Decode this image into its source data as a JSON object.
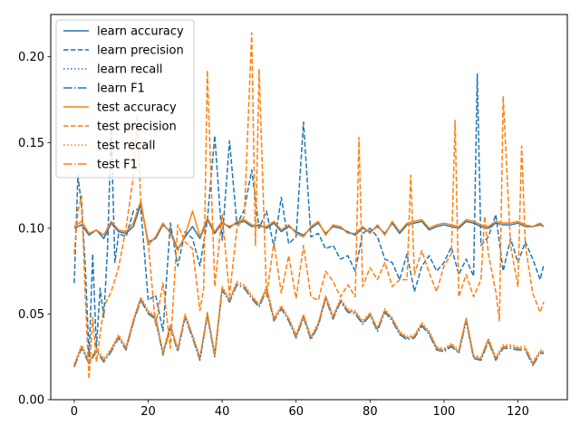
{
  "chart_data": {
    "type": "line",
    "title": "",
    "xlabel": "",
    "ylabel": "",
    "xlim": [
      -6.35,
      133.35
    ],
    "ylim": [
      0.0,
      0.2247
    ],
    "xticks": [
      0,
      20,
      40,
      60,
      80,
      100,
      120
    ],
    "xtick_labels": [
      "0",
      "20",
      "40",
      "60",
      "80",
      "100",
      "120"
    ],
    "yticks": [
      0.0,
      0.05,
      0.1,
      0.15,
      0.2
    ],
    "ytick_labels": [
      "0.00",
      "0.05",
      "0.10",
      "0.15",
      "0.20"
    ],
    "grid": false,
    "legend_position": "upper-left",
    "colors": {
      "learn": "#1f77b4",
      "test": "#ff7f0e"
    },
    "series": [
      {
        "name": "learn accuracy",
        "color": "#1f77b4",
        "style": "solid",
        "x": [
          0,
          2,
          4,
          6,
          8,
          10,
          12,
          14,
          16,
          18,
          20,
          22,
          24,
          26,
          28,
          30,
          32,
          34,
          36,
          38,
          40,
          42,
          44,
          46,
          48,
          50,
          52,
          54,
          56,
          58,
          60,
          62,
          64,
          66,
          68,
          70,
          72,
          74,
          76,
          78,
          80,
          82,
          84,
          86,
          88,
          90,
          92,
          94,
          96,
          98,
          100,
          102,
          104,
          106,
          108,
          110,
          112,
          114,
          116,
          118,
          120,
          122,
          124,
          126,
          127
        ],
        "y": [
          0.1,
          0.102,
          0.096,
          0.099,
          0.094,
          0.103,
          0.098,
          0.097,
          0.101,
          0.114,
          0.092,
          0.094,
          0.102,
          0.098,
          0.088,
          0.095,
          0.101,
          0.094,
          0.105,
          0.097,
          0.103,
          0.101,
          0.103,
          0.104,
          0.101,
          0.102,
          0.1,
          0.103,
          0.098,
          0.101,
          0.098,
          0.096,
          0.1,
          0.103,
          0.097,
          0.101,
          0.1,
          0.098,
          0.096,
          0.1,
          0.098,
          0.101,
          0.097,
          0.103,
          0.097,
          0.102,
          0.103,
          0.104,
          0.099,
          0.101,
          0.102,
          0.101,
          0.1,
          0.104,
          0.103,
          0.101,
          0.1,
          0.103,
          0.102,
          0.102,
          0.103,
          0.101,
          0.101,
          0.102,
          0.101
        ]
      },
      {
        "name": "learn precision",
        "color": "#1f77b4",
        "style": "dashed",
        "x": [
          0,
          1,
          2,
          3,
          4,
          5,
          6,
          7,
          8,
          9,
          10,
          11,
          12,
          14,
          16,
          18,
          20,
          22,
          24,
          26,
          28,
          30,
          32,
          34,
          36,
          38,
          40,
          42,
          44,
          46,
          48,
          50,
          52,
          54,
          56,
          58,
          60,
          62,
          64,
          66,
          68,
          70,
          72,
          74,
          76,
          78,
          80,
          82,
          84,
          86,
          88,
          90,
          92,
          94,
          96,
          98,
          100,
          102,
          104,
          106,
          108,
          109,
          110,
          112,
          114,
          116,
          118,
          120,
          122,
          124,
          126,
          127
        ],
        "y": [
          0.068,
          0.131,
          0.112,
          0.078,
          0.025,
          0.085,
          0.03,
          0.065,
          0.048,
          0.088,
          0.158,
          0.08,
          0.097,
          0.095,
          0.11,
          0.112,
          0.058,
          0.061,
          0.04,
          0.103,
          0.078,
          0.098,
          0.094,
          0.078,
          0.105,
          0.154,
          0.093,
          0.151,
          0.102,
          0.111,
          0.134,
          0.1,
          0.11,
          0.089,
          0.118,
          0.091,
          0.095,
          0.162,
          0.095,
          0.097,
          0.088,
          0.09,
          0.082,
          0.084,
          0.075,
          0.097,
          0.1,
          0.095,
          0.082,
          0.08,
          0.07,
          0.085,
          0.063,
          0.078,
          0.084,
          0.075,
          0.08,
          0.089,
          0.073,
          0.082,
          0.072,
          0.19,
          0.09,
          0.095,
          0.108,
          0.075,
          0.094,
          0.08,
          0.092,
          0.082,
          0.07,
          0.079
        ]
      },
      {
        "name": "learn recall",
        "color": "#1f77b4",
        "style": "dotted",
        "x": [
          0,
          2,
          4,
          6,
          8,
          10,
          12,
          14,
          16,
          18,
          20,
          22,
          24,
          26,
          28,
          30,
          32,
          34,
          36,
          38,
          40,
          42,
          44,
          46,
          48,
          50,
          52,
          54,
          56,
          58,
          60,
          62,
          64,
          66,
          68,
          70,
          72,
          74,
          76,
          78,
          80,
          82,
          84,
          86,
          88,
          90,
          92,
          94,
          96,
          98,
          100,
          102,
          104,
          106,
          108,
          110,
          112,
          114,
          116,
          118,
          120,
          122,
          124,
          126,
          127
        ],
        "y": [
          0.02,
          0.031,
          0.022,
          0.029,
          0.023,
          0.029,
          0.037,
          0.03,
          0.046,
          0.059,
          0.051,
          0.048,
          0.027,
          0.043,
          0.029,
          0.049,
          0.037,
          0.024,
          0.05,
          0.026,
          0.065,
          0.058,
          0.068,
          0.066,
          0.06,
          0.055,
          0.065,
          0.047,
          0.054,
          0.047,
          0.037,
          0.049,
          0.036,
          0.044,
          0.06,
          0.048,
          0.058,
          0.052,
          0.051,
          0.045,
          0.05,
          0.041,
          0.052,
          0.047,
          0.039,
          0.036,
          0.037,
          0.044,
          0.039,
          0.03,
          0.029,
          0.032,
          0.028,
          0.047,
          0.025,
          0.024,
          0.035,
          0.024,
          0.031,
          0.031,
          0.03,
          0.03,
          0.021,
          0.028,
          0.028
        ]
      },
      {
        "name": "learn F1",
        "color": "#1f77b4",
        "style": "dashdot",
        "x": [
          0,
          2,
          4,
          6,
          8,
          10,
          12,
          14,
          16,
          18,
          20,
          22,
          24,
          26,
          28,
          30,
          32,
          34,
          36,
          38,
          40,
          42,
          44,
          46,
          48,
          50,
          52,
          54,
          56,
          58,
          60,
          62,
          64,
          66,
          68,
          70,
          72,
          74,
          76,
          78,
          80,
          82,
          84,
          86,
          88,
          90,
          92,
          94,
          96,
          98,
          100,
          102,
          104,
          106,
          108,
          110,
          112,
          114,
          116,
          118,
          120,
          122,
          124,
          126,
          127
        ],
        "y": [
          0.019,
          0.03,
          0.021,
          0.028,
          0.022,
          0.028,
          0.036,
          0.029,
          0.045,
          0.058,
          0.05,
          0.047,
          0.026,
          0.042,
          0.028,
          0.048,
          0.036,
          0.023,
          0.049,
          0.025,
          0.064,
          0.057,
          0.067,
          0.065,
          0.059,
          0.054,
          0.064,
          0.046,
          0.053,
          0.046,
          0.036,
          0.048,
          0.035,
          0.043,
          0.059,
          0.047,
          0.057,
          0.051,
          0.05,
          0.044,
          0.049,
          0.04,
          0.051,
          0.046,
          0.038,
          0.035,
          0.036,
          0.043,
          0.038,
          0.029,
          0.028,
          0.031,
          0.027,
          0.046,
          0.024,
          0.023,
          0.034,
          0.023,
          0.03,
          0.03,
          0.029,
          0.029,
          0.02,
          0.027,
          0.027
        ]
      },
      {
        "name": "test accuracy",
        "color": "#ff7f0e",
        "style": "solid",
        "x": [
          0,
          2,
          4,
          6,
          8,
          10,
          12,
          14,
          16,
          18,
          20,
          22,
          24,
          26,
          28,
          30,
          32,
          34,
          36,
          38,
          40,
          42,
          44,
          46,
          48,
          50,
          52,
          54,
          56,
          58,
          60,
          62,
          64,
          66,
          68,
          70,
          72,
          74,
          76,
          78,
          80,
          82,
          84,
          86,
          88,
          90,
          92,
          94,
          96,
          98,
          100,
          102,
          104,
          106,
          108,
          110,
          112,
          114,
          116,
          118,
          120,
          122,
          124,
          126,
          127
        ],
        "y": [
          0.101,
          0.104,
          0.097,
          0.099,
          0.096,
          0.104,
          0.099,
          0.098,
          0.103,
          0.116,
          0.09,
          0.095,
          0.103,
          0.097,
          0.087,
          0.096,
          0.11,
          0.095,
          0.106,
          0.098,
          0.104,
          0.1,
          0.104,
          0.105,
          0.102,
          0.101,
          0.101,
          0.104,
          0.099,
          0.102,
          0.097,
          0.095,
          0.101,
          0.104,
          0.096,
          0.102,
          0.101,
          0.097,
          0.097,
          0.101,
          0.097,
          0.102,
          0.096,
          0.104,
          0.098,
          0.103,
          0.104,
          0.105,
          0.1,
          0.102,
          0.103,
          0.102,
          0.101,
          0.105,
          0.104,
          0.102,
          0.101,
          0.104,
          0.103,
          0.103,
          0.104,
          0.102,
          0.101,
          0.103,
          0.101
        ]
      },
      {
        "name": "test precision",
        "color": "#ff7f0e",
        "style": "dashed",
        "x": [
          0,
          1,
          2,
          3,
          4,
          5,
          6,
          8,
          10,
          12,
          14,
          16,
          17,
          18,
          20,
          22,
          24,
          26,
          28,
          30,
          32,
          34,
          35,
          36,
          38,
          40,
          42,
          44,
          46,
          48,
          49,
          50,
          52,
          54,
          56,
          58,
          60,
          62,
          64,
          66,
          68,
          70,
          72,
          74,
          76,
          77,
          78,
          80,
          82,
          84,
          86,
          88,
          90,
          91,
          92,
          94,
          96,
          98,
          100,
          102,
          103,
          104,
          106,
          108,
          110,
          111,
          112,
          114,
          115,
          116,
          118,
          120,
          121,
          122,
          124,
          126,
          127
        ],
        "y": [
          0.085,
          0.11,
          0.119,
          0.06,
          0.012,
          0.048,
          0.022,
          0.054,
          0.063,
          0.077,
          0.1,
          0.13,
          0.165,
          0.115,
          0.092,
          0.043,
          0.068,
          0.03,
          0.102,
          0.092,
          0.088,
          0.052,
          0.065,
          0.192,
          0.066,
          0.108,
          0.061,
          0.1,
          0.107,
          0.214,
          0.09,
          0.193,
          0.06,
          0.092,
          0.062,
          0.084,
          0.059,
          0.09,
          0.06,
          0.058,
          0.075,
          0.069,
          0.06,
          0.067,
          0.06,
          0.153,
          0.066,
          0.077,
          0.07,
          0.08,
          0.066,
          0.07,
          0.07,
          0.131,
          0.073,
          0.087,
          0.074,
          0.063,
          0.078,
          0.085,
          0.163,
          0.06,
          0.073,
          0.06,
          0.07,
          0.107,
          0.085,
          0.063,
          0.046,
          0.177,
          0.09,
          0.066,
          0.148,
          0.09,
          0.062,
          0.051,
          0.057
        ]
      },
      {
        "name": "test recall",
        "color": "#ff7f0e",
        "style": "dotted",
        "x": [
          0,
          2,
          4,
          6,
          8,
          10,
          12,
          14,
          16,
          18,
          20,
          22,
          24,
          26,
          28,
          30,
          32,
          34,
          36,
          38,
          40,
          42,
          44,
          46,
          48,
          50,
          52,
          54,
          56,
          58,
          60,
          62,
          64,
          66,
          68,
          70,
          72,
          74,
          76,
          78,
          80,
          82,
          84,
          86,
          88,
          90,
          92,
          94,
          96,
          98,
          100,
          102,
          104,
          106,
          108,
          110,
          112,
          114,
          116,
          118,
          120,
          122,
          124,
          126,
          127
        ],
        "y": [
          0.021,
          0.032,
          0.023,
          0.03,
          0.024,
          0.03,
          0.038,
          0.031,
          0.047,
          0.06,
          0.052,
          0.049,
          0.028,
          0.044,
          0.03,
          0.05,
          0.038,
          0.025,
          0.051,
          0.027,
          0.066,
          0.059,
          0.069,
          0.067,
          0.061,
          0.056,
          0.066,
          0.048,
          0.055,
          0.048,
          0.038,
          0.05,
          0.037,
          0.045,
          0.061,
          0.049,
          0.059,
          0.053,
          0.052,
          0.046,
          0.051,
          0.042,
          0.053,
          0.048,
          0.04,
          0.037,
          0.038,
          0.045,
          0.04,
          0.031,
          0.03,
          0.033,
          0.029,
          0.048,
          0.026,
          0.025,
          0.036,
          0.025,
          0.032,
          0.032,
          0.031,
          0.031,
          0.022,
          0.029,
          0.029
        ]
      },
      {
        "name": "test F1",
        "color": "#ff7f0e",
        "style": "dashdot",
        "x": [
          0,
          2,
          4,
          6,
          8,
          10,
          12,
          14,
          16,
          18,
          20,
          22,
          24,
          26,
          28,
          30,
          32,
          34,
          36,
          38,
          40,
          42,
          44,
          46,
          48,
          50,
          52,
          54,
          56,
          58,
          60,
          62,
          64,
          66,
          68,
          70,
          72,
          74,
          76,
          78,
          80,
          82,
          84,
          86,
          88,
          90,
          92,
          94,
          96,
          98,
          100,
          102,
          104,
          106,
          108,
          110,
          112,
          114,
          116,
          118,
          120,
          122,
          124,
          126,
          127
        ],
        "y": [
          0.02,
          0.031,
          0.022,
          0.029,
          0.023,
          0.029,
          0.037,
          0.03,
          0.046,
          0.059,
          0.051,
          0.048,
          0.027,
          0.043,
          0.029,
          0.049,
          0.037,
          0.024,
          0.05,
          0.026,
          0.065,
          0.058,
          0.068,
          0.066,
          0.06,
          0.055,
          0.065,
          0.047,
          0.054,
          0.047,
          0.037,
          0.049,
          0.036,
          0.044,
          0.06,
          0.048,
          0.058,
          0.052,
          0.051,
          0.045,
          0.05,
          0.041,
          0.052,
          0.047,
          0.039,
          0.036,
          0.037,
          0.044,
          0.039,
          0.03,
          0.029,
          0.032,
          0.028,
          0.047,
          0.025,
          0.024,
          0.035,
          0.024,
          0.031,
          0.031,
          0.03,
          0.03,
          0.021,
          0.028,
          0.028
        ]
      }
    ]
  }
}
